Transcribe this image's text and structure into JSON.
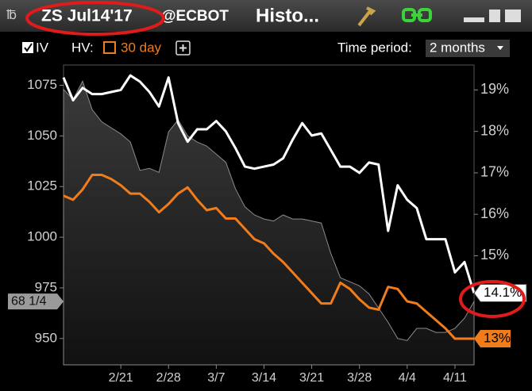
{
  "header": {
    "symbol": "ZS Jul14'17",
    "exchange": "@ECBOT",
    "title": "Histo..."
  },
  "toolbar": {
    "time_period_label": "Time period:",
    "time_period": "2 months"
  },
  "chart_data": {
    "type": "line",
    "categories": [
      null,
      null,
      null,
      null,
      null,
      null,
      "2/21",
      null,
      null,
      null,
      null,
      "2/28",
      null,
      null,
      null,
      null,
      "3/7",
      null,
      null,
      null,
      null,
      "3/14",
      null,
      null,
      null,
      null,
      "3/21",
      null,
      null,
      null,
      null,
      "3/28",
      null,
      null,
      null,
      null,
      "4/4",
      null,
      null,
      null,
      null,
      "4/11",
      null,
      null
    ],
    "series": [
      {
        "color": "#8a8a8a",
        "axis": "y",
        "fill": true,
        "values": [
          1073,
          1068,
          1077,
          1063,
          1057,
          1054,
          1051,
          1047,
          1033,
          1034,
          1032,
          1052,
          1058,
          1050,
          1047,
          1045,
          1041,
          1037,
          1024,
          1015,
          1011,
          1009,
          1008,
          1011,
          1009,
          1009,
          1008,
          1007,
          992,
          980,
          978,
          976,
          972,
          965,
          958,
          950,
          949,
          955,
          955,
          953,
          953,
          955,
          960,
          968.25
        ],
        "value_labels": [
          null,
          null,
          null,
          null,
          null,
          null,
          null,
          null,
          null,
          null,
          null,
          null,
          null,
          null,
          null,
          null,
          null,
          null,
          null,
          null,
          null,
          null,
          null,
          null,
          null,
          null,
          null,
          null,
          null,
          null,
          null,
          null,
          null,
          null,
          null,
          null,
          null,
          null,
          null,
          null,
          null,
          null,
          null,
          "68 1/4"
        ]
      },
      {
        "name": "IV",
        "color": "#ffffff",
        "axis": "y2",
        "values": [
          19.3,
          18.75,
          19.05,
          18.9,
          18.9,
          18.95,
          19.0,
          19.35,
          19.2,
          18.95,
          18.6,
          19.3,
          18.2,
          17.75,
          18.05,
          18.05,
          18.25,
          18.0,
          17.6,
          17.15,
          17.1,
          17.15,
          17.2,
          17.35,
          17.8,
          18.2,
          17.9,
          17.95,
          17.55,
          17.15,
          17.15,
          17.0,
          17.25,
          17.2,
          15.6,
          16.7,
          16.35,
          16.15,
          15.4,
          15.4,
          15.4,
          14.6,
          14.85,
          14.1
        ],
        "value_labels": [
          null,
          null,
          null,
          null,
          null,
          null,
          null,
          null,
          null,
          null,
          null,
          null,
          null,
          null,
          null,
          null,
          null,
          null,
          null,
          null,
          null,
          null,
          null,
          null,
          null,
          null,
          null,
          null,
          null,
          null,
          null,
          null,
          null,
          null,
          null,
          null,
          null,
          null,
          null,
          null,
          null,
          null,
          null,
          "14.1%"
        ]
      },
      {
        "name": "HV:",
        "period": "30 day",
        "color": "#f07c1a",
        "axis": "y2",
        "values": [
          16.45,
          16.35,
          16.6,
          16.95,
          16.95,
          16.85,
          16.7,
          16.5,
          16.5,
          16.3,
          16.05,
          16.25,
          16.5,
          16.65,
          16.35,
          16.1,
          16.15,
          15.9,
          15.9,
          15.65,
          15.4,
          15.3,
          15.05,
          14.85,
          14.6,
          14.35,
          14.1,
          13.85,
          13.85,
          14.35,
          14.2,
          13.95,
          13.75,
          13.7,
          14.25,
          14.2,
          13.9,
          13.85,
          13.65,
          13.45,
          13.25,
          13.0,
          13.0,
          13.0
        ],
        "value_labels": [
          null,
          null,
          null,
          null,
          null,
          null,
          null,
          null,
          null,
          null,
          null,
          null,
          null,
          null,
          null,
          null,
          null,
          null,
          null,
          null,
          null,
          null,
          null,
          null,
          null,
          null,
          null,
          null,
          null,
          null,
          null,
          null,
          null,
          null,
          null,
          null,
          null,
          null,
          null,
          null,
          null,
          null,
          null,
          "13%"
        ]
      }
    ],
    "ylim": [
      937,
      1085
    ],
    "yticks": [
      950,
      975,
      1000,
      1025,
      1050,
      1075
    ],
    "y2lim": [
      12.37,
      19.6
    ],
    "y2ticks": [
      {
        "value": 15,
        "label": "15%"
      },
      {
        "value": 16,
        "label": "16%"
      },
      {
        "value": 17,
        "label": "17%"
      },
      {
        "value": 18,
        "label": "18%"
      },
      {
        "value": 19,
        "label": "19%"
      }
    ]
  }
}
